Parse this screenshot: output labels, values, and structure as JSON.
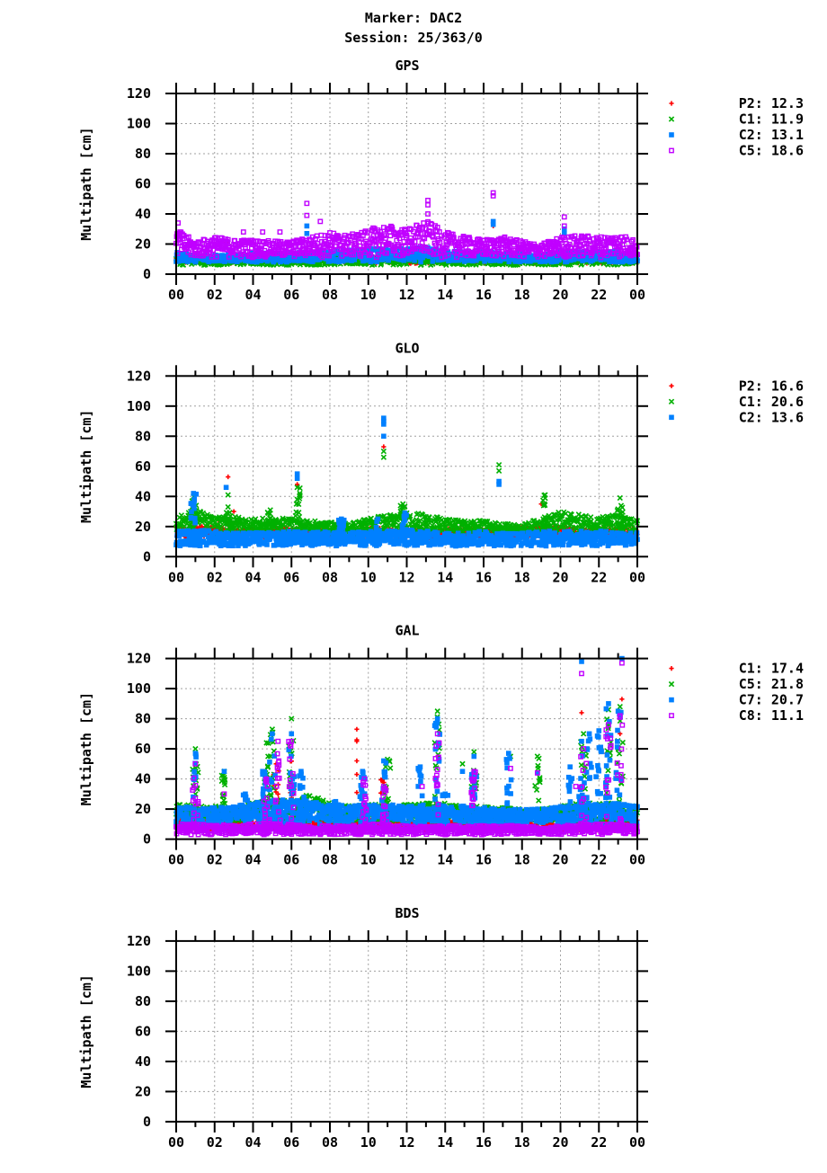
{
  "header": {
    "line1": "Marker: DAC2",
    "line2": "Session: 25/363/0"
  },
  "colors": {
    "P2": "#ff0000",
    "C1": "#00b000",
    "C2": "#0080ff",
    "C5": "#c000ff",
    "C7": "#0080ff",
    "C8": "#c000ff",
    "GAL_C5": "#00b000",
    "GAL_C1": "#ff0000"
  },
  "chart_data": [
    {
      "type": "scatter",
      "title": "GPS",
      "ylabel": "Multipath [cm]",
      "xlabel": "",
      "xlim": [
        0,
        24
      ],
      "ylim": [
        0,
        120
      ],
      "grid": true,
      "legend": "right",
      "xticks": [
        "00",
        "02",
        "04",
        "06",
        "08",
        "10",
        "12",
        "14",
        "16",
        "18",
        "20",
        "22",
        "00"
      ],
      "yticks": [
        "0",
        "20",
        "40",
        "60",
        "80",
        "100",
        "120"
      ],
      "series": [
        {
          "name": "P2: 12.3",
          "marker": "plus",
          "color": "#ff0000",
          "band": {
            "low": 7,
            "high": [
              12,
              11,
              11,
              11,
              11,
              11,
              11,
              11,
              12,
              12,
              12,
              12,
              12,
              12,
              12,
              11,
              12,
              11,
              11,
              11,
              12,
              12,
              12,
              12,
              11
            ]
          },
          "spikes": [],
          "outliers": [
            [
              16.5,
              32
            ],
            [
              2.6,
              21
            ]
          ]
        },
        {
          "name": "C1: 11.9",
          "marker": "cross",
          "color": "#00b000",
          "band": {
            "low": 6,
            "high": [
              12,
              11,
              10,
              11,
              11,
              11,
              11,
              11,
              12,
              12,
              12,
              12,
              12,
              12,
              12,
              12,
              12,
              11,
              11,
              11,
              12,
              12,
              12,
              12,
              11
            ]
          },
          "spikes": [],
          "outliers": []
        },
        {
          "name": "C2: 13.1",
          "marker": "square",
          "color": "#0080ff",
          "band": {
            "low": 8,
            "high": [
              15,
              13,
              13,
              13,
              14,
              14,
              14,
              15,
              15,
              16,
              17,
              17,
              17,
              18,
              16,
              15,
              15,
              14,
              14,
              13,
              15,
              15,
              15,
              15,
              14
            ]
          },
          "spikes": [],
          "outliers": [
            [
              6.8,
              32
            ],
            [
              6.8,
              27
            ],
            [
              16.5,
              35
            ],
            [
              16.5,
              33
            ],
            [
              20.2,
              30
            ],
            [
              20.2,
              27
            ]
          ]
        },
        {
          "name": "C5: 18.6",
          "marker": "opensquare",
          "color": "#c000ff",
          "band": {
            "low": 11,
            "high": [
              30,
              22,
              25,
              23,
              23,
              22,
              22,
              25,
              28,
              26,
              30,
              33,
              30,
              36,
              28,
              25,
              23,
              25,
              22,
              20,
              25,
              26,
              25,
              27,
              23
            ]
          },
          "spikes": [],
          "outliers": [
            [
              6.8,
              47
            ],
            [
              6.8,
              39
            ],
            [
              7.5,
              35
            ],
            [
              13.1,
              49
            ],
            [
              13.1,
              46
            ],
            [
              13.1,
              40
            ],
            [
              16.5,
              54
            ],
            [
              16.5,
              52
            ],
            [
              20.2,
              38
            ],
            [
              20.2,
              32
            ],
            [
              3.5,
              28
            ],
            [
              4.5,
              28
            ],
            [
              5.4,
              28
            ],
            [
              0.1,
              34
            ],
            [
              0.2,
              28
            ]
          ]
        }
      ]
    },
    {
      "type": "scatter",
      "title": "GLO",
      "ylabel": "Multipath [cm]",
      "xlabel": "",
      "xlim": [
        0,
        24
      ],
      "ylim": [
        0,
        120
      ],
      "grid": true,
      "legend": "right",
      "xticks": [
        "00",
        "02",
        "04",
        "06",
        "08",
        "10",
        "12",
        "14",
        "16",
        "18",
        "20",
        "22",
        "00"
      ],
      "yticks": [
        "0",
        "20",
        "40",
        "60",
        "80",
        "100",
        "120"
      ],
      "series": [
        {
          "name": "P2: 16.6",
          "marker": "plus",
          "color": "#ff0000",
          "band": {
            "low": 12,
            "high": [
              20,
              20,
              20,
              19,
              19,
              19,
              19,
              19,
              19,
              19,
              19,
              19,
              19,
              19,
              19,
              19,
              19,
              19,
              20,
              20,
              20,
              19,
              19,
              19,
              19
            ]
          },
          "spikes": [],
          "outliers": [
            [
              2.7,
              53
            ],
            [
              6.3,
              48
            ],
            [
              10.8,
              73
            ],
            [
              19.0,
              35
            ],
            [
              3.0,
              30
            ],
            [
              2.2,
              24
            ]
          ]
        },
        {
          "name": "C1: 20.6",
          "marker": "cross",
          "color": "#00b000",
          "band": {
            "low": 15,
            "high": [
              26,
              32,
              26,
              27,
              25,
              26,
              25,
              24,
              23,
              22,
              26,
              28,
              30,
              28,
              25,
              24,
              24,
              22,
              21,
              26,
              30,
              28,
              27,
              28,
              24
            ]
          },
          "spikes": [
            [
              0.9,
              40
            ],
            [
              2.7,
              33
            ],
            [
              6.3,
              46
            ],
            [
              19.2,
              41
            ],
            [
              23.1,
              39
            ],
            [
              4.9,
              31
            ],
            [
              11.8,
              35
            ]
          ],
          "outliers": [
            [
              10.8,
              70
            ],
            [
              10.8,
              66
            ],
            [
              16.8,
              61
            ],
            [
              16.8,
              57
            ],
            [
              6.3,
              38
            ],
            [
              2.7,
              41
            ]
          ]
        },
        {
          "name": "C2: 13.6",
          "marker": "square",
          "color": "#0080ff",
          "band": {
            "low": 7,
            "high": [
              17,
              18,
              17,
              16,
              16,
              16,
              17,
              16,
              17,
              16,
              17,
              18,
              18,
              17,
              16,
              16,
              17,
              16,
              16,
              17,
              17,
              17,
              17,
              17,
              16
            ]
          },
          "spikes": [
            [
              0.9,
              42
            ],
            [
              8.6,
              25
            ],
            [
              10.5,
              25
            ],
            [
              11.9,
              29
            ]
          ],
          "outliers": [
            [
              2.6,
              46
            ],
            [
              6.3,
              55
            ],
            [
              6.3,
              52
            ],
            [
              10.8,
              92
            ],
            [
              10.8,
              90
            ],
            [
              10.8,
              88
            ],
            [
              10.8,
              80
            ],
            [
              16.8,
              50
            ],
            [
              16.8,
              48
            ]
          ]
        }
      ]
    },
    {
      "type": "scatter",
      "title": "GAL",
      "ylabel": "Multipath [cm]",
      "xlabel": "",
      "xlim": [
        0,
        24
      ],
      "ylim": [
        0,
        120
      ],
      "grid": true,
      "legend": "right",
      "xticks": [
        "00",
        "02",
        "04",
        "06",
        "08",
        "10",
        "12",
        "14",
        "16",
        "18",
        "20",
        "22",
        "00"
      ],
      "yticks": [
        "0",
        "20",
        "40",
        "60",
        "80",
        "100",
        "120"
      ],
      "series": [
        {
          "name": "C1: 17.4",
          "marker": "plus",
          "color": "#ff0000",
          "band": {
            "low": 5,
            "high": [
              14,
              14,
              13,
              13,
              14,
              14,
              14,
              13,
              12,
              12,
              13,
              13,
              12,
              12,
              13,
              13,
              12,
              12,
              12,
              12,
              13,
              14,
              14,
              14,
              13
            ]
          },
          "spikes": [
            [
              5.2,
              50
            ],
            [
              6.0,
              55
            ],
            [
              10.8,
              40
            ]
          ],
          "outliers": [
            [
              9.4,
              73
            ],
            [
              9.4,
              66
            ],
            [
              9.4,
              65
            ],
            [
              9.4,
              52
            ],
            [
              9.4,
              43
            ],
            [
              9.4,
              31
            ],
            [
              21.1,
              84
            ],
            [
              23.2,
              93
            ],
            [
              23.1,
              70
            ],
            [
              22.4,
              57
            ],
            [
              13.6,
              55
            ]
          ]
        },
        {
          "name": "C5: 21.8",
          "marker": "cross",
          "color": "#00b000",
          "band": {
            "low": 12,
            "high": [
              24,
              22,
              22,
              21,
              24,
              26,
              26,
              30,
              24,
              22,
              24,
              24,
              23,
              24,
              24,
              22,
              22,
              21,
              20,
              20,
              22,
              24,
              24,
              24,
              22
            ]
          },
          "spikes": [
            [
              1.0,
              60
            ],
            [
              5.0,
              73
            ],
            [
              6.0,
              80
            ],
            [
              4.7,
              64
            ],
            [
              13.6,
              85
            ],
            [
              15.5,
              58
            ],
            [
              11.0,
              53
            ],
            [
              21.2,
              70
            ],
            [
              22.5,
              86
            ],
            [
              23.1,
              88
            ],
            [
              18.8,
              55
            ],
            [
              2.5,
              45
            ]
          ],
          "outliers": [
            [
              2.5,
              41
            ],
            [
              14.9,
              50
            ],
            [
              17.4,
              55
            ]
          ]
        },
        {
          "name": "C7: 20.7",
          "marker": "square",
          "color": "#0080ff",
          "band": {
            "low": 10,
            "high": [
              22,
              21,
              21,
              22,
              24,
              26,
              27,
              26,
              23,
              22,
              23,
              23,
              22,
              23,
              22,
              22,
              22,
              20,
              20,
              20,
              22,
              23,
              24,
              24,
              22
            ]
          },
          "spikes": [
            [
              1.0,
              57
            ],
            [
              4.5,
              45
            ],
            [
              5.0,
              70
            ],
            [
              6.0,
              70
            ],
            [
              6.5,
              45
            ],
            [
              9.7,
              45
            ],
            [
              10.8,
              52
            ],
            [
              13.6,
              80
            ],
            [
              15.5,
              55
            ],
            [
              17.3,
              57
            ],
            [
              20.5,
              48
            ],
            [
              21.1,
              65
            ],
            [
              21.5,
              70
            ],
            [
              22.0,
              72
            ],
            [
              22.5,
              90
            ],
            [
              23.0,
              85
            ],
            [
              3.6,
              30
            ],
            [
              12.7,
              48
            ],
            [
              14.0,
              30
            ],
            [
              8.3,
              25
            ]
          ],
          "outliers": [
            [
              21.1,
              118
            ],
            [
              23.2,
              120
            ],
            [
              2.5,
              45
            ],
            [
              14.9,
              45
            ],
            [
              18.8,
              44
            ]
          ]
        },
        {
          "name": "C8: 11.1",
          "marker": "opensquare",
          "color": "#c000ff",
          "band": {
            "low": 3,
            "high": [
              10,
              10,
              10,
              9,
              10,
              11,
              10,
              9,
              9,
              9,
              10,
              10,
              9,
              9,
              9,
              9,
              9,
              9,
              9,
              8,
              9,
              10,
              10,
              10,
              9
            ]
          },
          "spikes": [
            [
              1.0,
              50
            ],
            [
              4.7,
              40
            ],
            [
              5.3,
              65
            ],
            [
              6.0,
              65
            ],
            [
              9.8,
              40
            ],
            [
              10.8,
              35
            ],
            [
              13.6,
              70
            ],
            [
              15.5,
              45
            ],
            [
              21.2,
              60
            ],
            [
              22.5,
              76
            ],
            [
              23.1,
              82
            ]
          ],
          "outliers": [
            [
              21.1,
              110
            ],
            [
              23.2,
              117
            ],
            [
              17.4,
              47
            ],
            [
              18.8,
              44
            ],
            [
              20.8,
              35
            ],
            [
              2.5,
              30
            ],
            [
              12.8,
              35
            ],
            [
              3.8,
              10
            ]
          ]
        }
      ]
    },
    {
      "type": "scatter",
      "title": "BDS",
      "ylabel": "Multipath [cm]",
      "xlabel": "",
      "xlim": [
        0,
        24
      ],
      "ylim": [
        0,
        120
      ],
      "grid": true,
      "legend": "none",
      "xticks": [
        "00",
        "02",
        "04",
        "06",
        "08",
        "10",
        "12",
        "14",
        "16",
        "18",
        "20",
        "22",
        "00"
      ],
      "yticks": [
        "0",
        "20",
        "40",
        "60",
        "80",
        "100",
        "120"
      ],
      "series": []
    }
  ]
}
